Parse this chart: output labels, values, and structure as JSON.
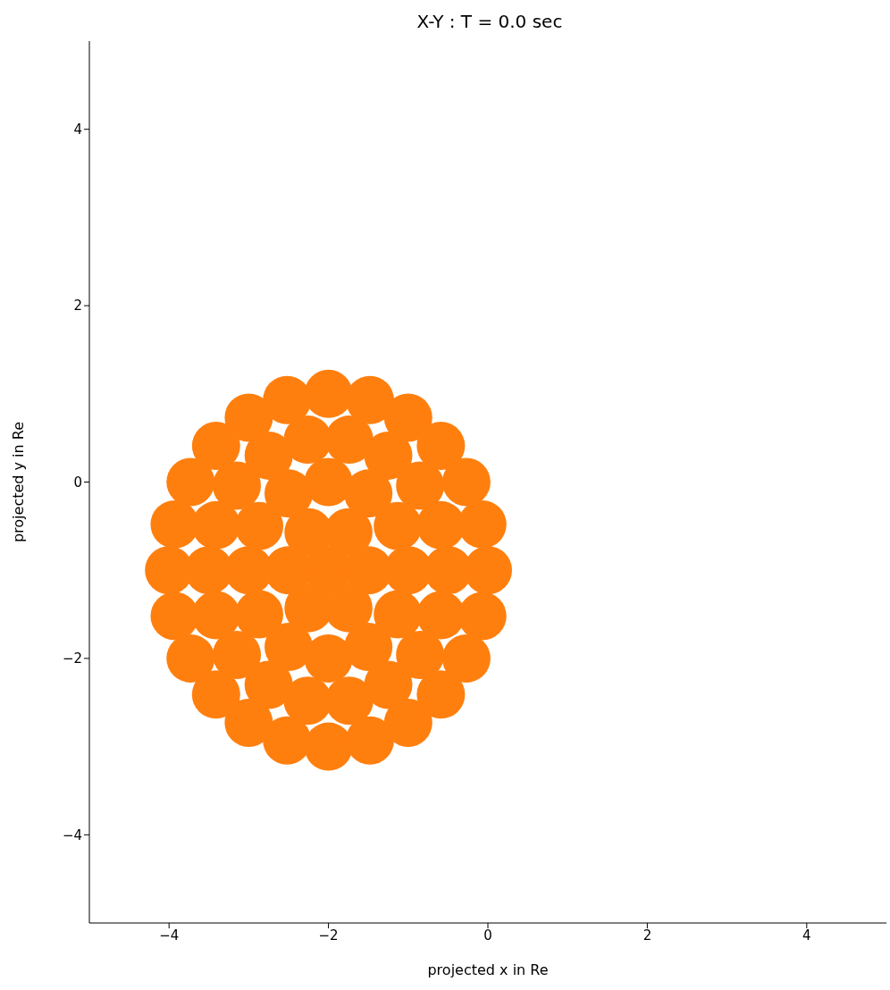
{
  "chart_data": {
    "type": "scatter",
    "title": "X-Y : T = 0.0 sec",
    "xlabel": "projected x in Re",
    "ylabel": "projected y in Re",
    "xlim": [
      -5,
      5
    ],
    "xticks": [
      -4,
      -2,
      0,
      2,
      4
    ],
    "ylim": [
      -5,
      5
    ],
    "yticks": [
      -4,
      -2,
      0,
      2,
      4
    ],
    "grid": false,
    "legend": false,
    "marker": "circle",
    "series": [
      {
        "color": "#ff7f0e",
        "x": [
          -2,
          -1.5,
          -1.75,
          -2.25,
          -2.5,
          -2.25,
          -1.75,
          -1,
          -1.13,
          -1.5,
          -2,
          -2.5,
          -2.87,
          -3,
          -2.87,
          -2.5,
          -2,
          -1.5,
          -1.13,
          -0.5,
          -0.59,
          -0.85,
          -1.25,
          -1.74,
          -2.26,
          -2.75,
          -3.15,
          -3.41,
          -3.5,
          -3.41,
          -3.15,
          -2.75,
          -2.26,
          -1.74,
          -1.25,
          -0.85,
          -0.59,
          0,
          -0.07,
          -0.27,
          -0.59,
          -1,
          -1.48,
          -2,
          -2.52,
          -3,
          -3.41,
          -3.73,
          -3.93,
          -4,
          -3.93,
          -3.73,
          -3.41,
          -3,
          -2.52,
          -2,
          -1.48,
          -1,
          -0.59,
          -0.27,
          -0.07
        ],
        "values": [
          -1,
          -1,
          -0.57,
          -0.57,
          -1,
          -1.43,
          -1.43,
          -1,
          -0.5,
          -0.13,
          0,
          -0.13,
          -0.5,
          -1,
          -1.5,
          -1.87,
          -2,
          -1.87,
          -1.5,
          -1,
          -0.49,
          -0.04,
          0.3,
          0.48,
          0.48,
          0.3,
          -0.04,
          -0.49,
          -1,
          -1.51,
          -1.96,
          -2.3,
          -2.48,
          -2.48,
          -2.3,
          -1.96,
          -1.51,
          -1,
          -0.48,
          0,
          0.41,
          0.73,
          0.93,
          1,
          0.93,
          0.73,
          0.41,
          0,
          -0.48,
          -1,
          -1.52,
          -2,
          -2.41,
          -2.73,
          -2.93,
          -3,
          -2.93,
          -2.73,
          -2.41,
          -2,
          -1.52
        ]
      }
    ]
  }
}
